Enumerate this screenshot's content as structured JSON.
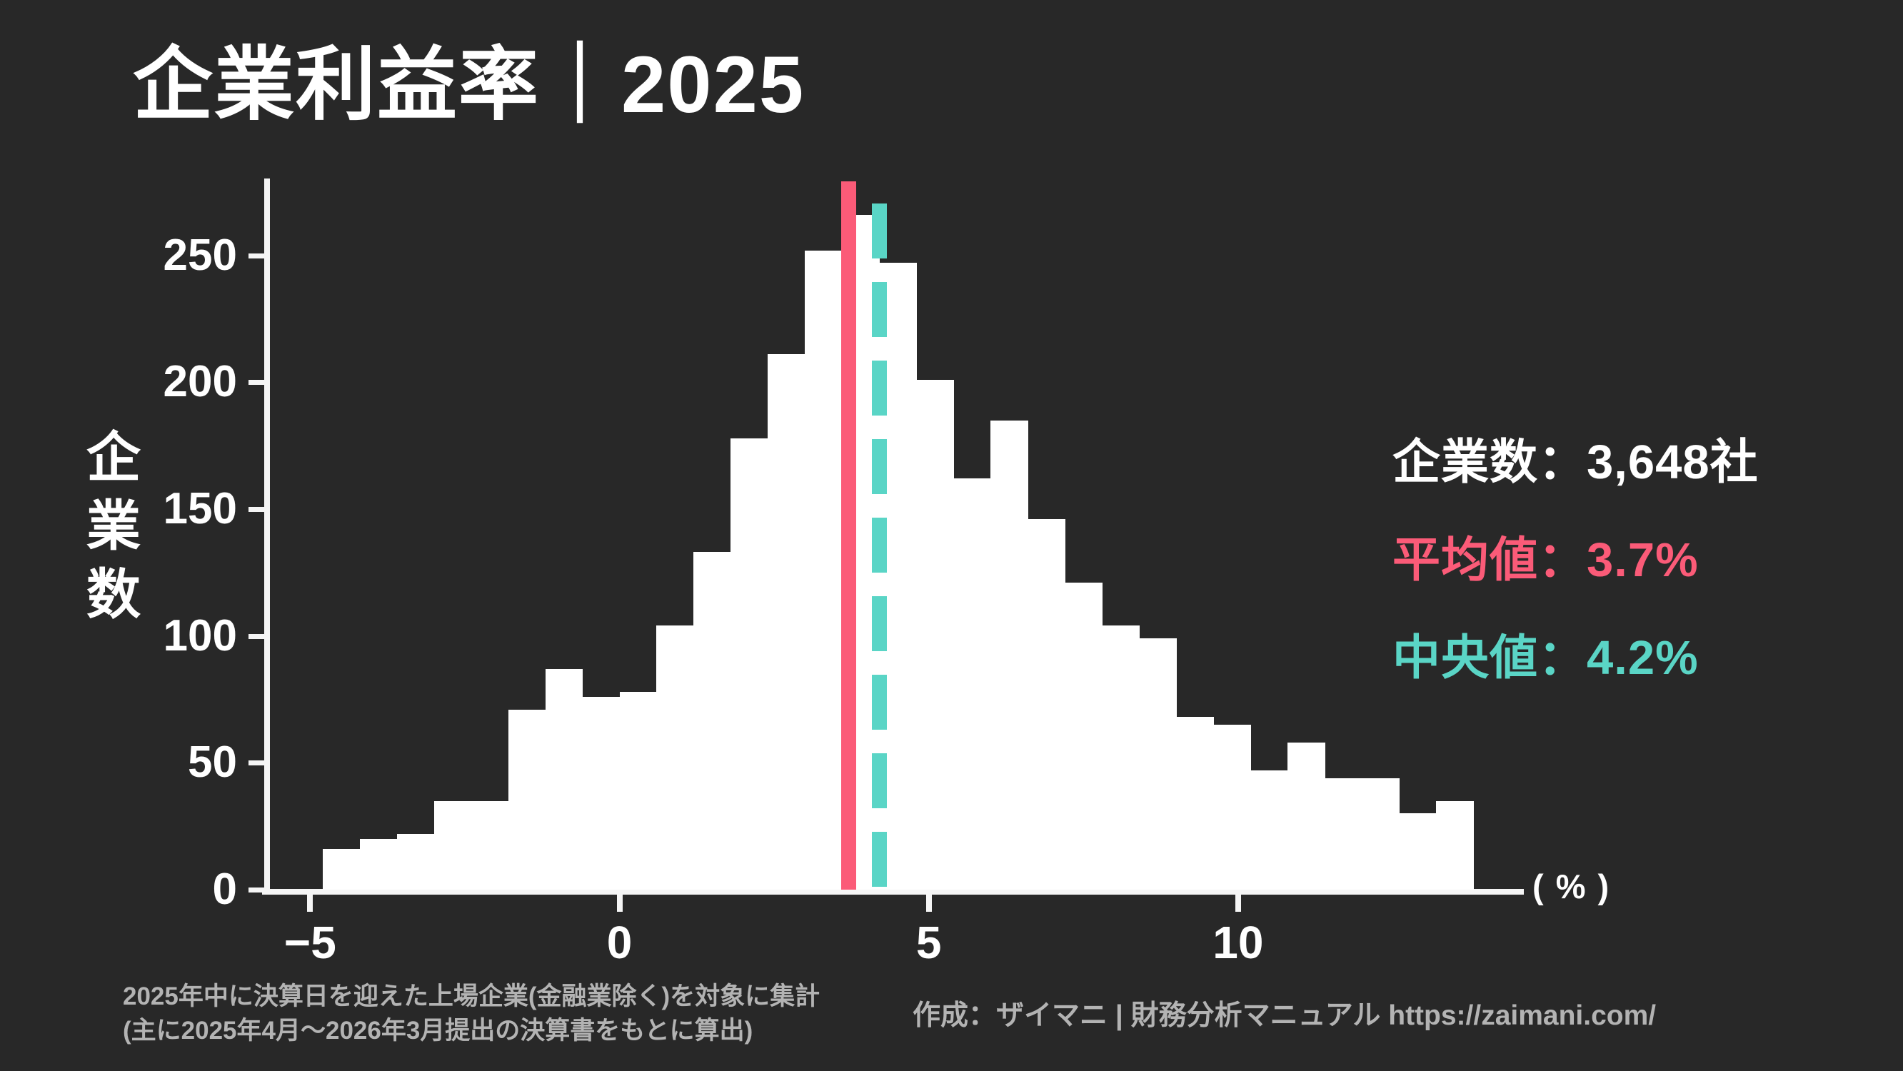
{
  "title": "企業利益率｜2025",
  "colors": {
    "background": "#282828",
    "bar": "#ffffff",
    "mean": "#fb5b78",
    "median": "#5ad5c6",
    "axis": "#f5f5f5",
    "text": "#ffffff",
    "muted": "#b3b3b3"
  },
  "stats": {
    "count": {
      "label": "企業数",
      "value": "3,648社",
      "text": "企業数：3,648社"
    },
    "mean": {
      "label": "平均値",
      "value": "3.7%",
      "text": "平均値：3.7%"
    },
    "median": {
      "label": "中央値",
      "value": "4.2%",
      "text": "中央値：4.2%"
    }
  },
  "chart_data": {
    "type": "bar",
    "subtype": "histogram",
    "title": "企業利益率｜2025",
    "xlabel": "( % )",
    "ylabel": "企業数",
    "x_unit_label": "( % )",
    "bin_start": -4.8,
    "bin_width": 0.6,
    "values": [
      16,
      20,
      22,
      35,
      35,
      71,
      87,
      76,
      78,
      104,
      133,
      178,
      211,
      252,
      266,
      247,
      201,
      162,
      185,
      146,
      121,
      104,
      99,
      68,
      65,
      47,
      58,
      44,
      44,
      30,
      35
    ],
    "x_ticks": [
      -5,
      0,
      5,
      10
    ],
    "y_ticks": [
      0,
      50,
      100,
      150,
      200,
      250
    ],
    "xlim": [
      -5.8,
      14.7
    ],
    "ylim": [
      0,
      280
    ],
    "grid": false,
    "legend_position": "none",
    "mean": 3.7,
    "median": 4.2,
    "mean_color": "#fb5b78",
    "median_color": "#5ad5c6"
  },
  "footer": {
    "note_line1": "2025年中に決算日を迎えた上場企業(金融業除く)を対象に集計",
    "note_line2": "(主に2025年4月～2026年3月提出の決算書をもとに算出)",
    "credit": "作成：ザイマニ | 財務分析マニュアル https://zaimani.com/"
  }
}
